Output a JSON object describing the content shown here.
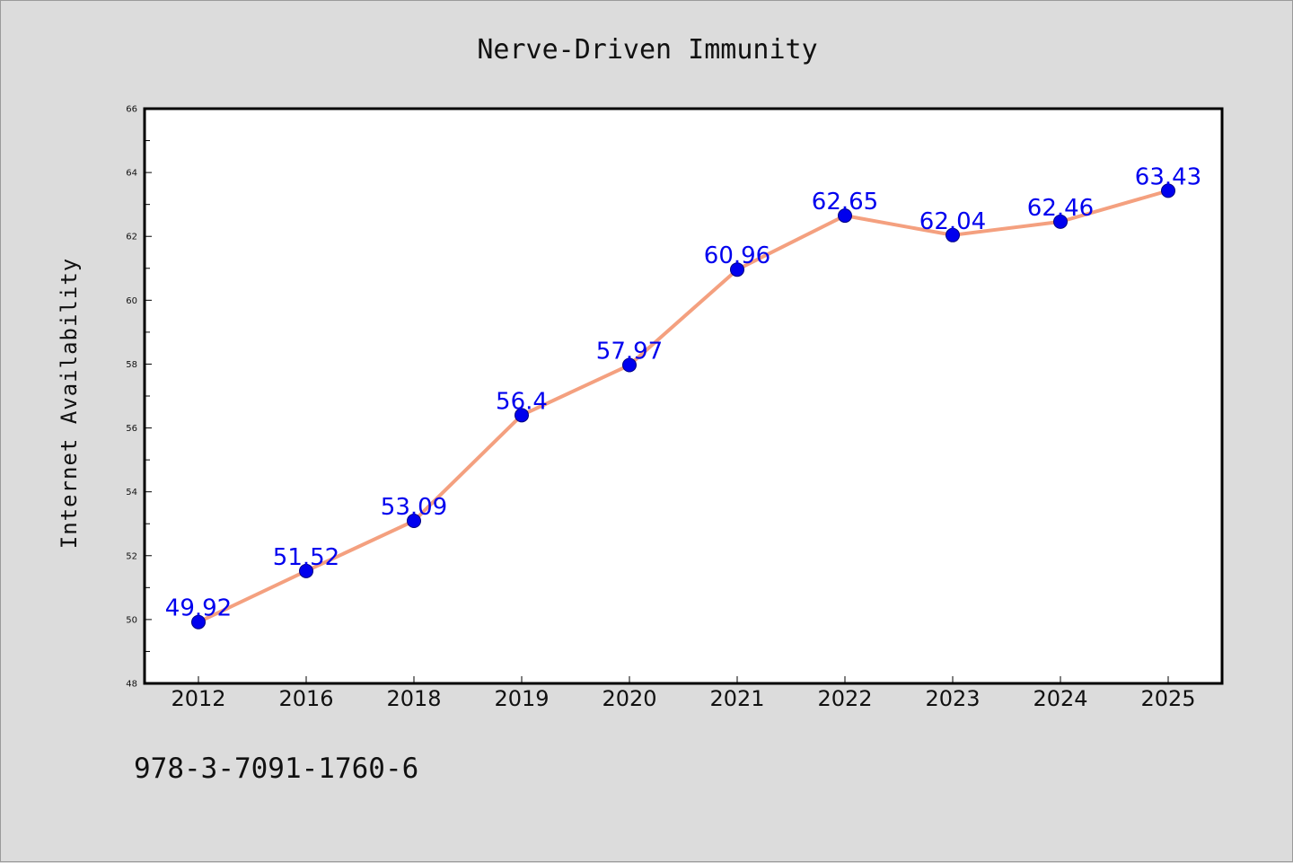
{
  "chart_data": {
    "type": "line",
    "title": "Nerve-Driven Immunity",
    "xlabel": "",
    "ylabel": "Internet Availability",
    "categories": [
      "2012",
      "2016",
      "2018",
      "2019",
      "2020",
      "2021",
      "2022",
      "2023",
      "2024",
      "2025"
    ],
    "series": [
      {
        "values": [
          49.92,
          51.52,
          53.09,
          56.4,
          57.97,
          60.96,
          62.65,
          62.04,
          62.46,
          63.43
        ],
        "data_labels": [
          "49.92",
          "51.52",
          "53.09",
          "56.4",
          "57.97",
          "60.96",
          "62.65",
          "62.04",
          "62.46",
          "63.43"
        ]
      }
    ],
    "ylim": [
      48,
      66
    ],
    "yticks": [
      "48",
      "50",
      "52",
      "54",
      "56",
      "58",
      "60",
      "62",
      "64",
      "66"
    ],
    "grid": false,
    "legend": "none"
  },
  "footer": {
    "isbn": "978-3-7091-1760-6"
  },
  "colors": {
    "background": "#dcdcdc",
    "plot_background": "#ffffff",
    "line": "#f4a07f",
    "marker": "#0000ee",
    "data_label": "#0000ee"
  }
}
